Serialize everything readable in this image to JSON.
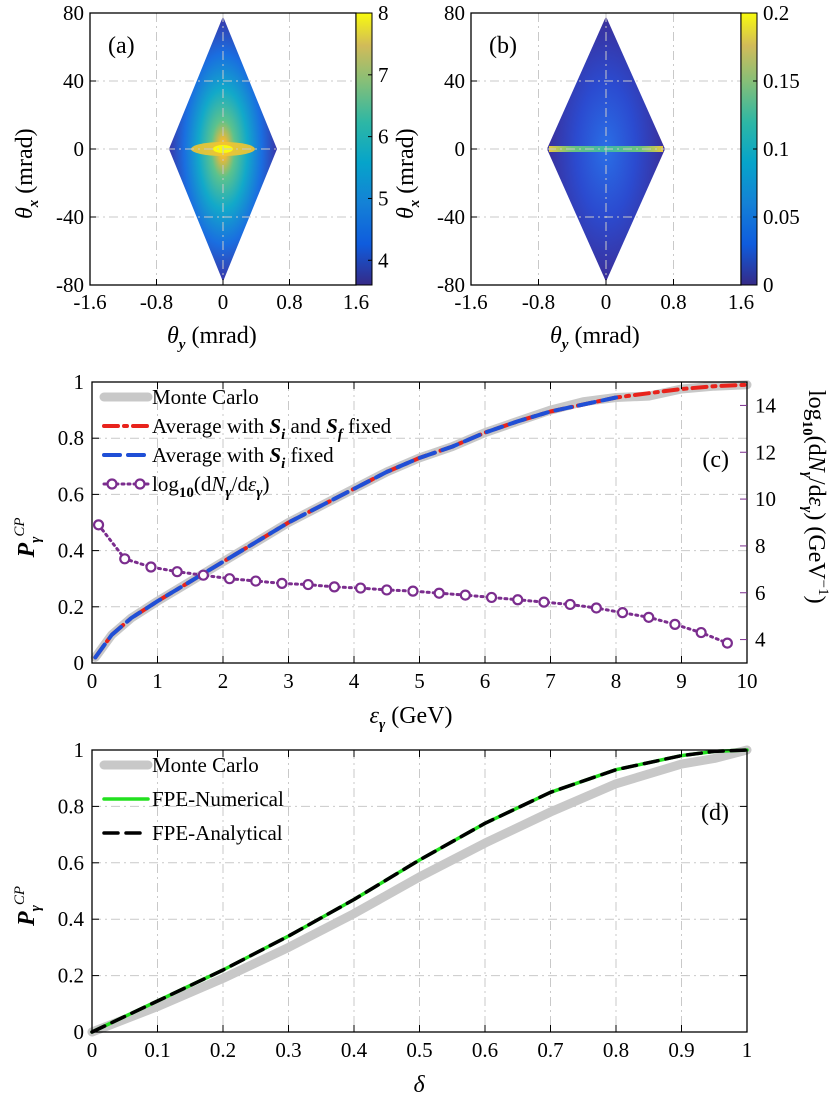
{
  "chart_data": [
    {
      "panel": "(a)",
      "type": "heatmap",
      "xlabel": "θ_y (mrad)",
      "ylabel": "θ_x (mrad)",
      "xlim": [
        -1.6,
        1.6
      ],
      "ylim": [
        -80,
        80
      ],
      "x_ticks": [
        "-1.6",
        "-0.8",
        "0",
        "0.8",
        "1.6"
      ],
      "y_ticks": [
        "80",
        "40",
        "0",
        "-40",
        "-80"
      ],
      "colorbar": {
        "range": [
          3.6,
          8
        ],
        "ticks": [
          "8",
          "7",
          "6",
          "5",
          "4"
        ]
      },
      "shape": "diamond",
      "extent": {
        "theta_y_half_width": 0.65,
        "theta_x_half_height": 78
      },
      "peak": {
        "theta_y": 0,
        "theta_x": 0,
        "value": 8
      },
      "grid": true
    },
    {
      "panel": "(b)",
      "type": "heatmap",
      "xlabel": "θ_y (mrad)",
      "ylabel": "θ_x (mrad)",
      "xlim": [
        -1.6,
        1.6
      ],
      "ylim": [
        -80,
        80
      ],
      "x_ticks": [
        "-1.6",
        "-0.8",
        "0",
        "0.8",
        "1.6"
      ],
      "y_ticks": [
        "80",
        "40",
        "0",
        "-40",
        "-80"
      ],
      "colorbar": {
        "range": [
          0,
          0.2
        ],
        "ticks": [
          "0.2",
          "0.15",
          "0.1",
          "0.05",
          "0"
        ]
      },
      "shape": "diamond",
      "extent": {
        "theta_y_half_width": 0.7,
        "theta_x_half_height": 78
      },
      "peak": {
        "note": "bright horizontal band at θ_x = 0",
        "value": 0.15
      },
      "grid": true
    },
    {
      "panel": "(c)",
      "type": "line",
      "xlabel": "ε_γ (GeV)",
      "ylabel": "P_γ^CP",
      "ylabel_right": "log10(dN_γ/dε_γ) (GeV^-1)",
      "xlim": [
        0,
        10
      ],
      "ylim": [
        0,
        1
      ],
      "ylim_right": [
        3,
        15
      ],
      "x_ticks": [
        "0",
        "1",
        "2",
        "3",
        "4",
        "5",
        "6",
        "7",
        "8",
        "9",
        "10"
      ],
      "y_ticks": [
        "0",
        "0.2",
        "0.4",
        "0.6",
        "0.8",
        "1"
      ],
      "y_ticks_right": [
        "4",
        "6",
        "8",
        "10",
        "12",
        "14"
      ],
      "legend": [
        "Monte Carlo",
        "Average with S_i and S_f fixed",
        "Average with S_i fixed",
        "log10(dN_γ/dε_γ)"
      ],
      "legend_position": "top-left",
      "grid": true,
      "series": [
        {
          "name": "Monte Carlo",
          "color": "#c8c8c8",
          "x": [
            0.05,
            0.3,
            0.6,
            1,
            1.5,
            2,
            2.5,
            3,
            3.5,
            4,
            4.5,
            5,
            5.5,
            6,
            6.5,
            7,
            7.5,
            8,
            8.5,
            9,
            9.5,
            10
          ],
          "y": [
            0.02,
            0.1,
            0.16,
            0.22,
            0.29,
            0.36,
            0.43,
            0.5,
            0.56,
            0.62,
            0.68,
            0.73,
            0.77,
            0.82,
            0.86,
            0.9,
            0.93,
            0.945,
            0.95,
            0.975,
            0.985,
            0.99
          ]
        },
        {
          "name": "Average with S_i and S_f fixed",
          "color": "#e8231c",
          "x": [
            0.05,
            0.3,
            0.6,
            1,
            1.5,
            2,
            2.5,
            3,
            3.5,
            4,
            4.5,
            5,
            5.5,
            6,
            6.5,
            7,
            7.5,
            8,
            8.5,
            9,
            9.5,
            10
          ],
          "y": [
            0.02,
            0.1,
            0.16,
            0.22,
            0.29,
            0.36,
            0.43,
            0.5,
            0.56,
            0.62,
            0.68,
            0.73,
            0.77,
            0.82,
            0.86,
            0.895,
            0.92,
            0.945,
            0.96,
            0.975,
            0.985,
            0.99
          ]
        },
        {
          "name": "Average with S_i fixed",
          "color": "#1f4fd6",
          "x": [
            0.05,
            0.3,
            0.6,
            1,
            1.5,
            2,
            2.5,
            3,
            3.5,
            4,
            4.5,
            5,
            5.5,
            6,
            6.5,
            7,
            7.5,
            8
          ],
          "y": [
            0.02,
            0.1,
            0.16,
            0.22,
            0.29,
            0.36,
            0.43,
            0.5,
            0.56,
            0.62,
            0.68,
            0.73,
            0.77,
            0.82,
            0.86,
            0.895,
            0.92,
            0.945
          ]
        },
        {
          "name": "log10(dN_γ/dε_γ)",
          "axis": "right",
          "color": "#7b2d8e",
          "x": [
            0.1,
            0.5,
            0.9,
            1.3,
            1.7,
            2.1,
            2.5,
            2.9,
            3.3,
            3.7,
            4.1,
            4.5,
            4.9,
            5.3,
            5.7,
            6.1,
            6.5,
            6.9,
            7.3,
            7.7,
            8.1,
            8.5,
            8.9,
            9.3,
            9.7
          ],
          "y": [
            8.9,
            7.45,
            7.1,
            6.9,
            6.75,
            6.6,
            6.5,
            6.4,
            6.35,
            6.25,
            6.2,
            6.12,
            6.07,
            5.98,
            5.9,
            5.8,
            5.7,
            5.6,
            5.5,
            5.35,
            5.15,
            4.95,
            4.65,
            4.3,
            3.85
          ]
        }
      ]
    },
    {
      "panel": "(d)",
      "type": "line",
      "xlabel": "δ",
      "ylabel": "P_γ^CP",
      "xlim": [
        0,
        1
      ],
      "ylim": [
        0,
        1
      ],
      "x_ticks": [
        "0",
        "0.1",
        "0.2",
        "0.3",
        "0.4",
        "0.5",
        "0.6",
        "0.7",
        "0.8",
        "0.9",
        "1"
      ],
      "y_ticks": [
        "0",
        "0.2",
        "0.4",
        "0.6",
        "0.8",
        "1"
      ],
      "legend": [
        "Monte Carlo",
        "FPE-Numerical",
        "FPE-Analytical"
      ],
      "legend_position": "top-left",
      "grid": true,
      "series": [
        {
          "name": "Monte Carlo",
          "color": "#c8c8c8",
          "x": [
            0,
            0.1,
            0.2,
            0.3,
            0.4,
            0.5,
            0.6,
            0.7,
            0.8,
            0.9,
            0.95,
            1
          ],
          "y": [
            0,
            0.09,
            0.19,
            0.3,
            0.42,
            0.55,
            0.67,
            0.78,
            0.88,
            0.95,
            0.97,
            1
          ]
        },
        {
          "name": "FPE-Numerical",
          "color": "#22e01f",
          "x": [
            0,
            0.1,
            0.2,
            0.3,
            0.4,
            0.5,
            0.6,
            0.7,
            0.8,
            0.9,
            0.95,
            1
          ],
          "y": [
            0,
            0.11,
            0.22,
            0.34,
            0.47,
            0.61,
            0.74,
            0.85,
            0.93,
            0.98,
            0.995,
            1
          ]
        },
        {
          "name": "FPE-Analytical",
          "color": "#000000",
          "x": [
            0,
            0.1,
            0.2,
            0.3,
            0.4,
            0.5,
            0.6,
            0.7,
            0.8,
            0.9,
            0.95,
            1
          ],
          "y": [
            0,
            0.11,
            0.22,
            0.34,
            0.47,
            0.61,
            0.74,
            0.85,
            0.93,
            0.98,
            0.995,
            1
          ]
        }
      ]
    }
  ]
}
